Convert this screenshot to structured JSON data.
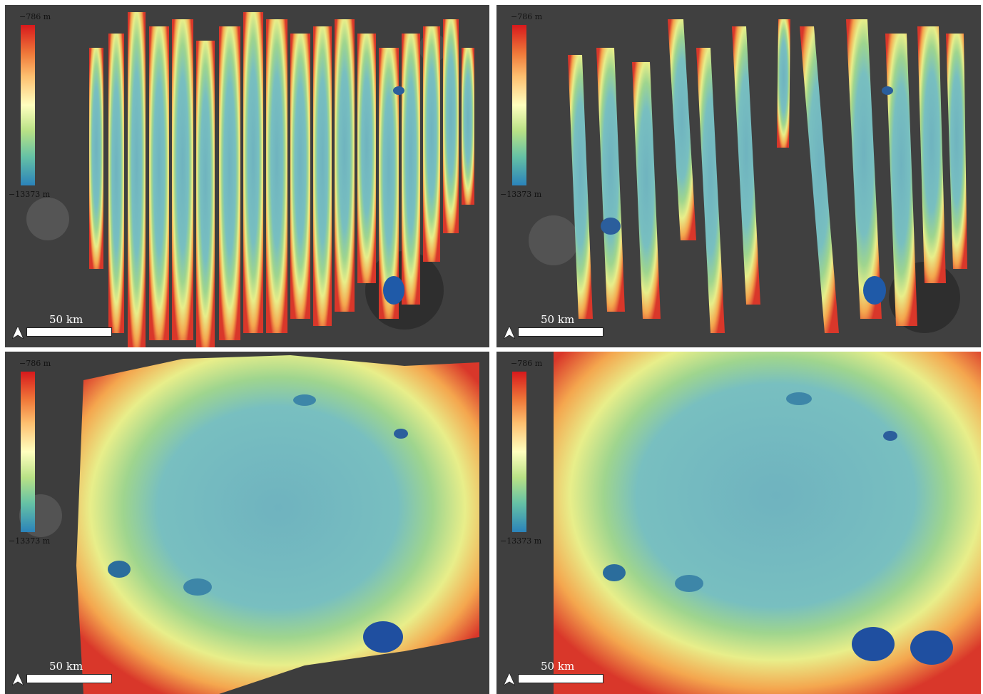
{
  "figure": {
    "panels": [
      {
        "id": "a",
        "legend": {
          "max_label": "−786 m",
          "min_label": "−13373 m"
        },
        "scale_label": "50 km",
        "coverage": "sparse strips"
      },
      {
        "id": "b",
        "legend": {
          "max_label": "−786 m",
          "min_label": "−13373 m"
        },
        "scale_label": "50 km",
        "coverage": "sparse strips, alternate set"
      },
      {
        "id": "c",
        "legend": {
          "max_label": "−786 m",
          "min_label": "−13373 m"
        },
        "scale_label": "50 km",
        "coverage": "dense strips"
      },
      {
        "id": "d",
        "legend": {
          "max_label": "−786 m",
          "min_label": "−13373 m"
        },
        "scale_label": "50 km",
        "coverage": "complete mosaic"
      }
    ],
    "colormap": [
      "#d7191c",
      "#fdae61",
      "#ffffbf",
      "#abdda4",
      "#2b83ba"
    ]
  }
}
